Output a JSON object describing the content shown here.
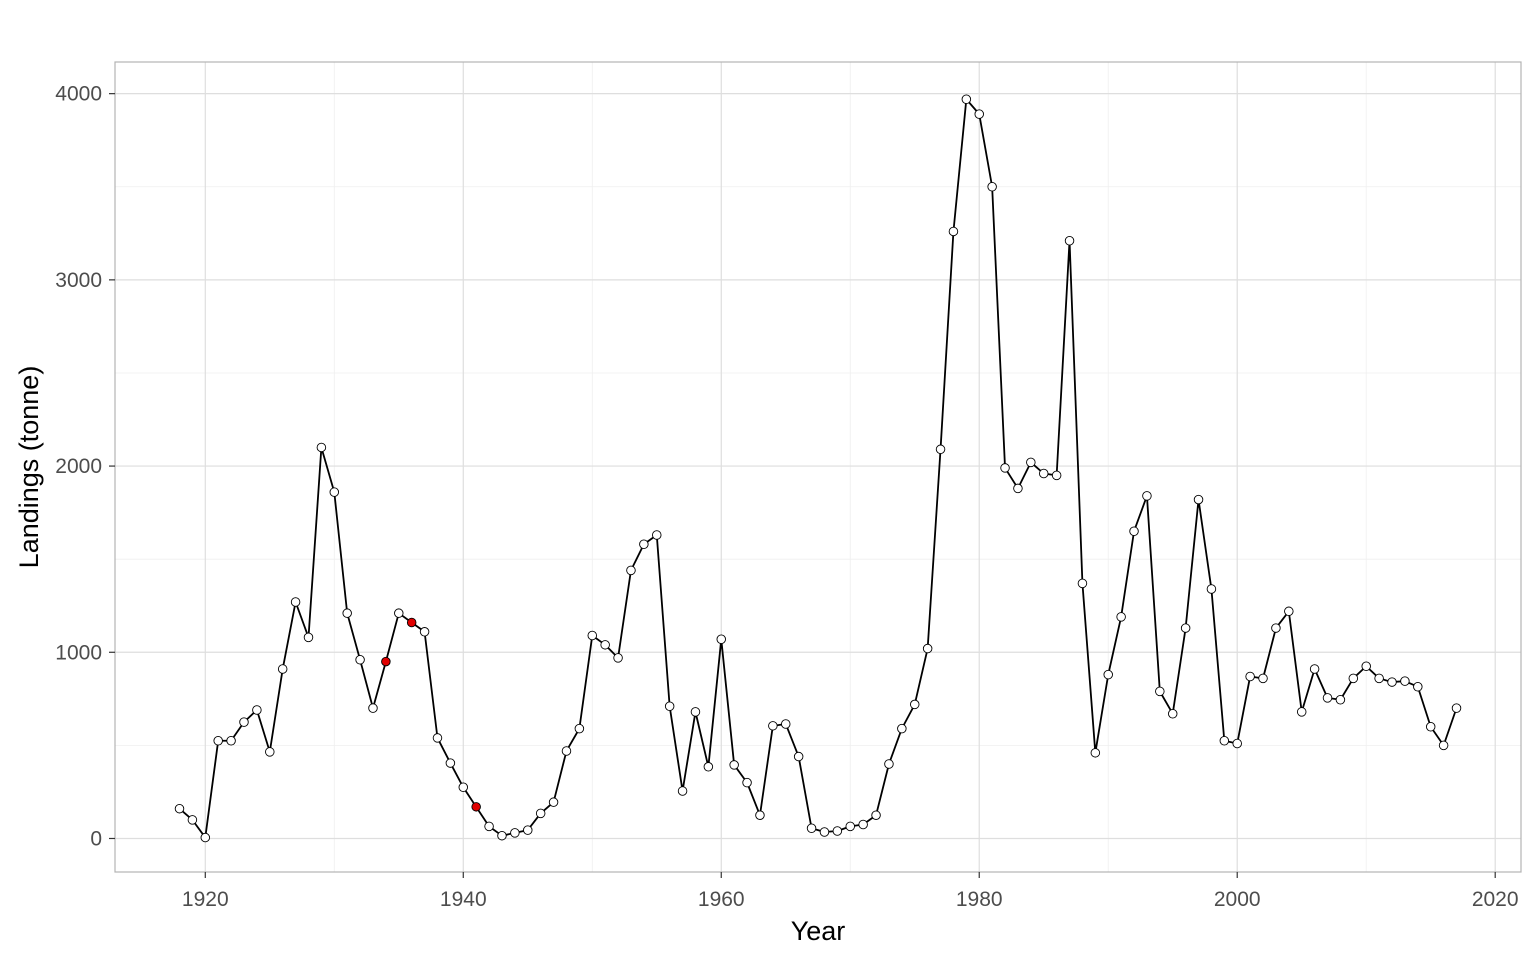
{
  "chart_data": {
    "type": "line",
    "title": "",
    "xlabel": "Year",
    "ylabel": "Landings (tonne)",
    "xlim": [
      1913,
      2022
    ],
    "ylim": [
      -180,
      4170
    ],
    "x_ticks": [
      1920,
      1940,
      1960,
      1980,
      2000,
      2020
    ],
    "y_ticks": [
      0,
      1000,
      2000,
      3000,
      4000
    ],
    "grid": true,
    "colors": {
      "line": "#000000",
      "point_fill": "#ffffff",
      "highlight_fill": "#e00000",
      "panel_border": "#b3b3b3",
      "grid": "#dedede"
    },
    "x": [
      1918,
      1919,
      1920,
      1921,
      1922,
      1923,
      1924,
      1925,
      1926,
      1927,
      1928,
      1929,
      1930,
      1931,
      1932,
      1933,
      1934,
      1935,
      1936,
      1937,
      1938,
      1939,
      1940,
      1941,
      1942,
      1943,
      1944,
      1945,
      1946,
      1947,
      1948,
      1949,
      1950,
      1951,
      1952,
      1953,
      1954,
      1955,
      1956,
      1957,
      1958,
      1959,
      1960,
      1961,
      1962,
      1963,
      1964,
      1965,
      1966,
      1967,
      1968,
      1969,
      1970,
      1971,
      1972,
      1973,
      1974,
      1975,
      1976,
      1977,
      1978,
      1979,
      1980,
      1981,
      1982,
      1983,
      1984,
      1985,
      1986,
      1987,
      1988,
      1989,
      1990,
      1991,
      1992,
      1993,
      1994,
      1995,
      1996,
      1997,
      1998,
      1999,
      2000,
      2001,
      2002,
      2003,
      2004,
      2005,
      2006,
      2007,
      2008,
      2009,
      2010,
      2011,
      2012,
      2013,
      2014,
      2015,
      2016,
      2017
    ],
    "values": [
      160,
      100,
      5,
      525,
      525,
      625,
      690,
      465,
      910,
      1270,
      1080,
      2100,
      1860,
      1210,
      960,
      700,
      950,
      1210,
      1160,
      1110,
      540,
      405,
      275,
      170,
      65,
      15,
      30,
      45,
      135,
      195,
      470,
      590,
      1090,
      1040,
      970,
      1440,
      1580,
      1630,
      710,
      255,
      680,
      385,
      1070,
      395,
      300,
      125,
      605,
      615,
      440,
      55,
      35,
      40,
      65,
      75,
      125,
      400,
      590,
      720,
      1020,
      2090,
      3260,
      3970,
      3890,
      3500,
      1990,
      1880,
      2020,
      1960,
      1950,
      3210,
      1370,
      460,
      880,
      1190,
      1650,
      1840,
      790,
      670,
      1130,
      1820,
      1340,
      525,
      510,
      870,
      860,
      1130,
      1220,
      680,
      910,
      755,
      745,
      860,
      925,
      860,
      840,
      845,
      815,
      600,
      500,
      700
    ],
    "highlight_x": [
      1934,
      1936,
      1941
    ]
  }
}
